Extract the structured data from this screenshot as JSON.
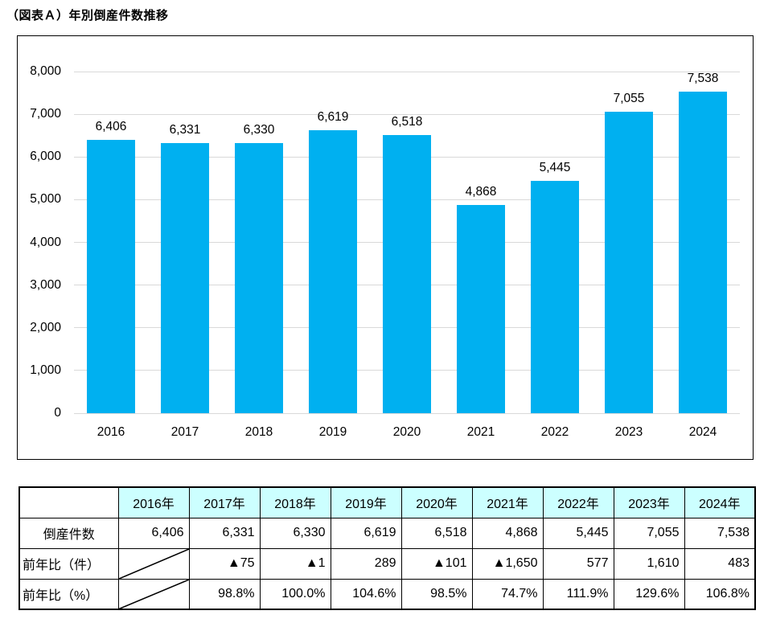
{
  "page": {
    "title": "（図表Ａ）年別倒産件数推移"
  },
  "chart_data": {
    "type": "bar",
    "title": "（図表Ａ）年別倒産件数推移",
    "categories": [
      "2016",
      "2017",
      "2018",
      "2019",
      "2020",
      "2021",
      "2022",
      "2023",
      "2024"
    ],
    "values": [
      6406,
      6331,
      6330,
      6619,
      6518,
      4868,
      5445,
      7055,
      7538
    ],
    "value_labels": [
      "6,406",
      "6,331",
      "6,330",
      "6,619",
      "6,518",
      "4,868",
      "5,445",
      "7,055",
      "7,538"
    ],
    "xlabel": "",
    "ylabel": "",
    "ylim": [
      0,
      8000
    ],
    "ytick_interval": 1000,
    "ytick_labels": [
      "0",
      "1,000",
      "2,000",
      "3,000",
      "4,000",
      "5,000",
      "6,000",
      "7,000",
      "8,000"
    ],
    "grid": true,
    "legend": "none",
    "bar_color": "#00B0F0",
    "gridline_color": "#D9D9D9"
  },
  "table": {
    "header": [
      "",
      "2016年",
      "2017年",
      "2018年",
      "2019年",
      "2020年",
      "2021年",
      "2022年",
      "2023年",
      "2024年"
    ],
    "header_bg": "#CCFFFF",
    "rows": [
      {
        "label": "倒産件数",
        "label_align": "center",
        "cells": [
          "6,406",
          "6,331",
          "6,330",
          "6,619",
          "6,518",
          "4,868",
          "5,445",
          "7,055",
          "7,538"
        ]
      },
      {
        "label": "前年比（件）",
        "label_align": "left",
        "cells": [
          null,
          "▲75",
          "▲1",
          "289",
          "▲101",
          "▲1,650",
          "577",
          "1,610",
          "483"
        ]
      },
      {
        "label": "前年比（%）",
        "label_align": "left",
        "cells": [
          null,
          "98.8%",
          "100.0%",
          "104.6%",
          "98.5%",
          "74.7%",
          "111.9%",
          "129.6%",
          "106.8%"
        ]
      }
    ]
  }
}
